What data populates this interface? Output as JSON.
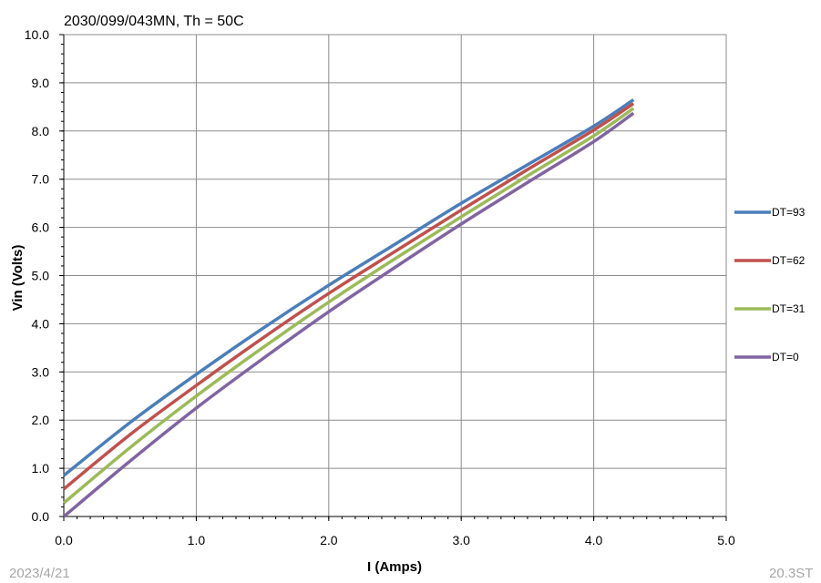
{
  "chart_data": {
    "type": "line",
    "title": "2030/099/043MN, Th = 50C",
    "xlabel": "I (Amps)",
    "ylabel": "Vin (Volts)",
    "xlim": [
      0,
      5
    ],
    "ylim": [
      0,
      10
    ],
    "xticks": [
      "0.0",
      "1.0",
      "2.0",
      "3.0",
      "4.0",
      "5.0"
    ],
    "yticks": [
      "0.0",
      "1.0",
      "2.0",
      "3.0",
      "4.0",
      "5.0",
      "6.0",
      "7.0",
      "8.0",
      "9.0",
      "10.0"
    ],
    "grid": true,
    "legend_position": "right",
    "series": [
      {
        "name": "DT=93",
        "color": "#4a7ebb",
        "x": [
          0,
          0.5,
          1.0,
          1.5,
          2.0,
          2.5,
          3.0,
          3.5,
          4.0,
          4.3
        ],
        "y": [
          0.85,
          1.95,
          2.95,
          3.9,
          4.8,
          5.65,
          6.5,
          7.3,
          8.1,
          8.65
        ]
      },
      {
        "name": "DT=62",
        "color": "#c0504d",
        "x": [
          0,
          0.5,
          1.0,
          1.5,
          2.0,
          2.5,
          3.0,
          3.5,
          4.0,
          4.3
        ],
        "y": [
          0.57,
          1.7,
          2.72,
          3.7,
          4.63,
          5.5,
          6.36,
          7.2,
          8.02,
          8.57
        ]
      },
      {
        "name": "DT=31",
        "color": "#9bbb59",
        "x": [
          0,
          0.5,
          1.0,
          1.5,
          2.0,
          2.5,
          3.0,
          3.5,
          4.0,
          4.3
        ],
        "y": [
          0.28,
          1.43,
          2.5,
          3.5,
          4.45,
          5.35,
          6.22,
          7.07,
          7.9,
          8.47
        ]
      },
      {
        "name": "DT=0",
        "color": "#8064a2",
        "x": [
          0,
          0.5,
          1.0,
          1.5,
          2.0,
          2.5,
          3.0,
          3.5,
          4.0,
          4.3
        ],
        "y": [
          0.0,
          1.15,
          2.25,
          3.27,
          4.25,
          5.17,
          6.07,
          6.93,
          7.78,
          8.37
        ]
      }
    ]
  },
  "footer": {
    "date": "2023/4/21",
    "version": "20.3ST"
  }
}
